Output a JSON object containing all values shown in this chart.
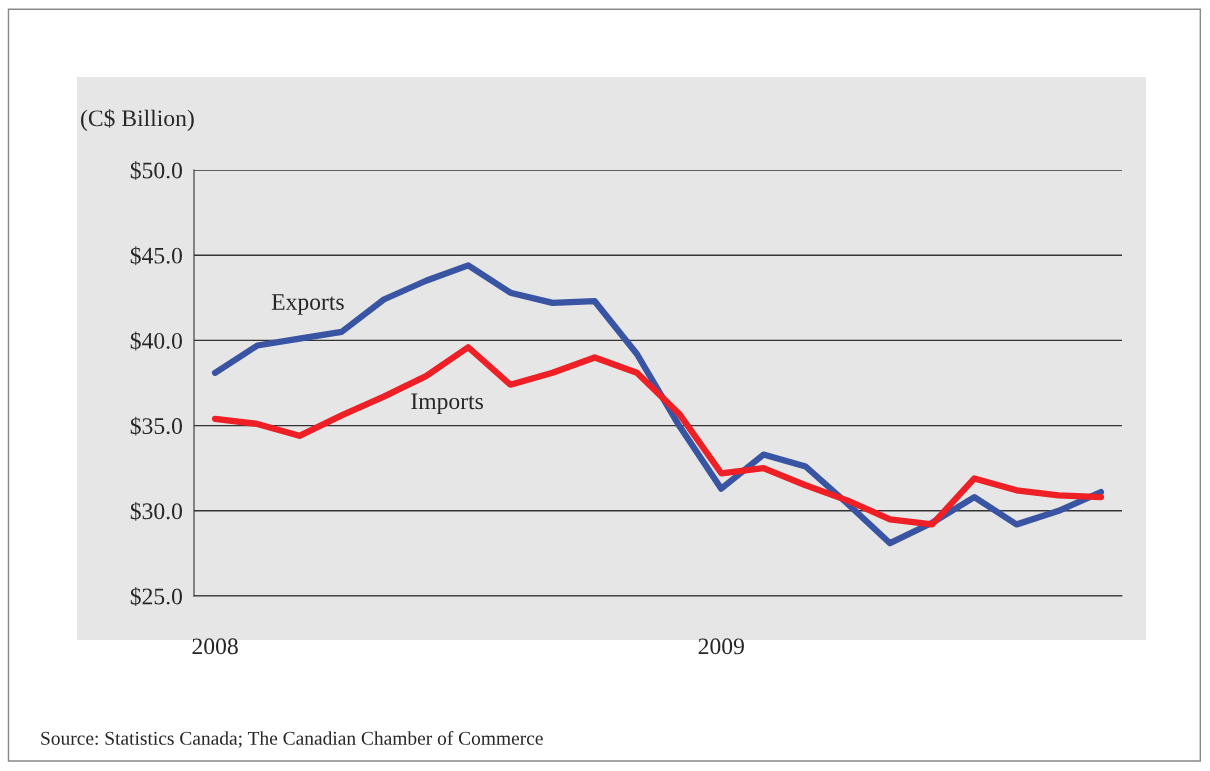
{
  "chart_data": {
    "type": "line",
    "ylabel": "(C$ Billion)",
    "categories": [
      "2008",
      null,
      null,
      null,
      null,
      null,
      null,
      null,
      null,
      null,
      null,
      null,
      "2009",
      null,
      null,
      null,
      null,
      null,
      null,
      null,
      null,
      null
    ],
    "series": [
      {
        "name": "Exports",
        "color": "#3a54a4",
        "values": [
          38.1,
          39.7,
          40.1,
          40.5,
          42.4,
          43.5,
          44.4,
          42.8,
          42.2,
          42.3,
          39.2,
          35.0,
          31.3,
          33.3,
          32.6,
          30.4,
          28.1,
          29.3,
          30.8,
          29.2,
          30.0,
          31.1
        ]
      },
      {
        "name": "Imports",
        "color": "#ee1f25",
        "values": [
          35.4,
          35.1,
          34.4,
          35.6,
          36.7,
          37.9,
          39.6,
          37.4,
          38.1,
          39.0,
          38.1,
          35.7,
          32.2,
          32.5,
          31.5,
          30.6,
          29.5,
          29.2,
          31.9,
          31.2,
          30.9,
          30.8
        ]
      }
    ],
    "ylim": [
      25,
      50
    ],
    "yticks": [
      {
        "value": 25,
        "label": "$25.0"
      },
      {
        "value": 30,
        "label": "$30.0"
      },
      {
        "value": 35,
        "label": "$35.0"
      },
      {
        "value": 40,
        "label": "$40.0"
      },
      {
        "value": 45,
        "label": "$45.0"
      },
      {
        "value": 50,
        "label": "$50.0"
      }
    ],
    "grid": "y",
    "legend": false,
    "marker": "none",
    "line_style": "solid",
    "annotations": [
      "Source: Statistics Canada; The Canadian Chamber of Commerce"
    ]
  }
}
